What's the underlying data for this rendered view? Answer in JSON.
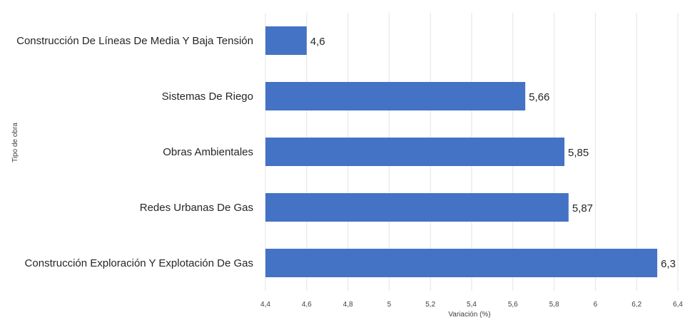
{
  "chart_data": {
    "type": "bar",
    "orientation": "horizontal",
    "categories": [
      "Construcción De Líneas De Media Y Baja Tensión",
      "Sistemas De Riego",
      "Obras Ambientales",
      "Redes Urbanas De Gas",
      "Construcción Exploración Y Explotación De Gas"
    ],
    "values": [
      4.6,
      5.66,
      5.85,
      5.87,
      6.3
    ],
    "value_labels": [
      "4,6",
      "5,66",
      "5,85",
      "5,87",
      "6,3"
    ],
    "xlabel": "Variación (%)",
    "ylabel": "Tipo de obra",
    "xlim": [
      4.4,
      6.4
    ],
    "xticks": [
      4.4,
      4.6,
      4.8,
      5,
      5.2,
      5.4,
      5.6,
      5.8,
      6,
      6.2,
      6.4
    ],
    "xtick_labels": [
      "4,4",
      "4,6",
      "4,8",
      "5",
      "5,2",
      "5,4",
      "5,6",
      "5,8",
      "6",
      "6,2",
      "6,4"
    ],
    "grid": true,
    "legend": false,
    "bar_color": "#4472C4"
  }
}
